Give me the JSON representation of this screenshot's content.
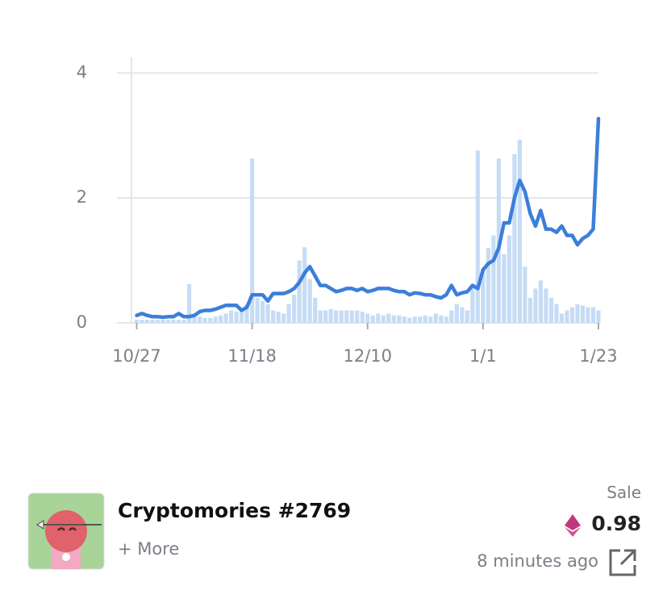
{
  "chart_data": {
    "type": "bar-line",
    "x": [
      0,
      1,
      2,
      3,
      4,
      5,
      6,
      7,
      8,
      9,
      10,
      11,
      12,
      13,
      14,
      15,
      16,
      17,
      18,
      19,
      20,
      21,
      22,
      23,
      24,
      25,
      26,
      27,
      28,
      29,
      30,
      31,
      32,
      33,
      34,
      35,
      36,
      37,
      38,
      39,
      40,
      41,
      42,
      43,
      44,
      45,
      46,
      47,
      48,
      49,
      50,
      51,
      52,
      53,
      54,
      55,
      56,
      57,
      58,
      59,
      60,
      61,
      62,
      63,
      64,
      65,
      66,
      67,
      68,
      69,
      70,
      71,
      72,
      73,
      74,
      75,
      76,
      77,
      78,
      79,
      80,
      81,
      82,
      83,
      84,
      85,
      86,
      87,
      88
    ],
    "series": [
      {
        "type": "bar",
        "color": "#c6dcf5",
        "values": [
          0.05,
          0.05,
          0.05,
          0.05,
          0.05,
          0.05,
          0.05,
          0.05,
          0.05,
          0.05,
          0.62,
          0.15,
          0.1,
          0.08,
          0.08,
          0.1,
          0.12,
          0.15,
          0.2,
          0.18,
          0.2,
          0.3,
          2.63,
          0.4,
          0.35,
          0.3,
          0.2,
          0.18,
          0.15,
          0.3,
          0.45,
          1.0,
          1.21,
          0.7,
          0.4,
          0.2,
          0.2,
          0.22,
          0.2,
          0.2,
          0.2,
          0.2,
          0.2,
          0.18,
          0.15,
          0.12,
          0.15,
          0.12,
          0.15,
          0.12,
          0.12,
          0.1,
          0.08,
          0.1,
          0.1,
          0.12,
          0.1,
          0.15,
          0.12,
          0.1,
          0.2,
          0.3,
          0.25,
          0.2,
          0.6,
          2.76,
          0.85,
          1.2,
          1.4,
          2.63,
          1.1,
          1.4,
          2.7,
          2.93,
          0.9,
          0.4,
          0.55,
          0.68,
          0.55,
          0.4,
          0.3,
          0.15,
          0.2,
          0.25,
          0.3,
          0.28,
          0.25,
          0.25,
          0.2
        ]
      },
      {
        "type": "line",
        "color": "#3b7fd9",
        "values": [
          0.12,
          0.15,
          0.12,
          0.1,
          0.1,
          0.09,
          0.1,
          0.1,
          0.15,
          0.1,
          0.1,
          0.12,
          0.18,
          0.2,
          0.2,
          0.22,
          0.25,
          0.28,
          0.28,
          0.28,
          0.2,
          0.25,
          0.45,
          0.45,
          0.45,
          0.35,
          0.47,
          0.47,
          0.47,
          0.5,
          0.55,
          0.65,
          0.8,
          0.9,
          0.75,
          0.6,
          0.6,
          0.55,
          0.5,
          0.52,
          0.55,
          0.55,
          0.52,
          0.55,
          0.5,
          0.52,
          0.55,
          0.55,
          0.55,
          0.52,
          0.5,
          0.5,
          0.45,
          0.48,
          0.47,
          0.45,
          0.45,
          0.42,
          0.4,
          0.45,
          0.6,
          0.45,
          0.48,
          0.5,
          0.6,
          0.55,
          0.85,
          0.95,
          1.0,
          1.2,
          1.6,
          1.6,
          2.0,
          2.28,
          2.1,
          1.75,
          1.55,
          1.8,
          1.5,
          1.5,
          1.45,
          1.55,
          1.4,
          1.4,
          1.25,
          1.35,
          1.4,
          1.5,
          3.27
        ]
      }
    ],
    "xlim": [
      -1,
      88
    ],
    "xticks": [
      {
        "value": 0,
        "label": "10/27"
      },
      {
        "value": 22,
        "label": "11/18"
      },
      {
        "value": 44,
        "label": "12/10"
      },
      {
        "value": 66,
        "label": "1/1"
      },
      {
        "value": 88,
        "label": "1/23"
      }
    ],
    "ylim": [
      0,
      4.25
    ],
    "yticks": [
      0,
      2,
      4
    ],
    "grid": true
  },
  "item": {
    "name": "Cryptomories #2769",
    "more": "+ More",
    "event": "Sale",
    "price": "0.98",
    "time": "8 minutes ago"
  }
}
